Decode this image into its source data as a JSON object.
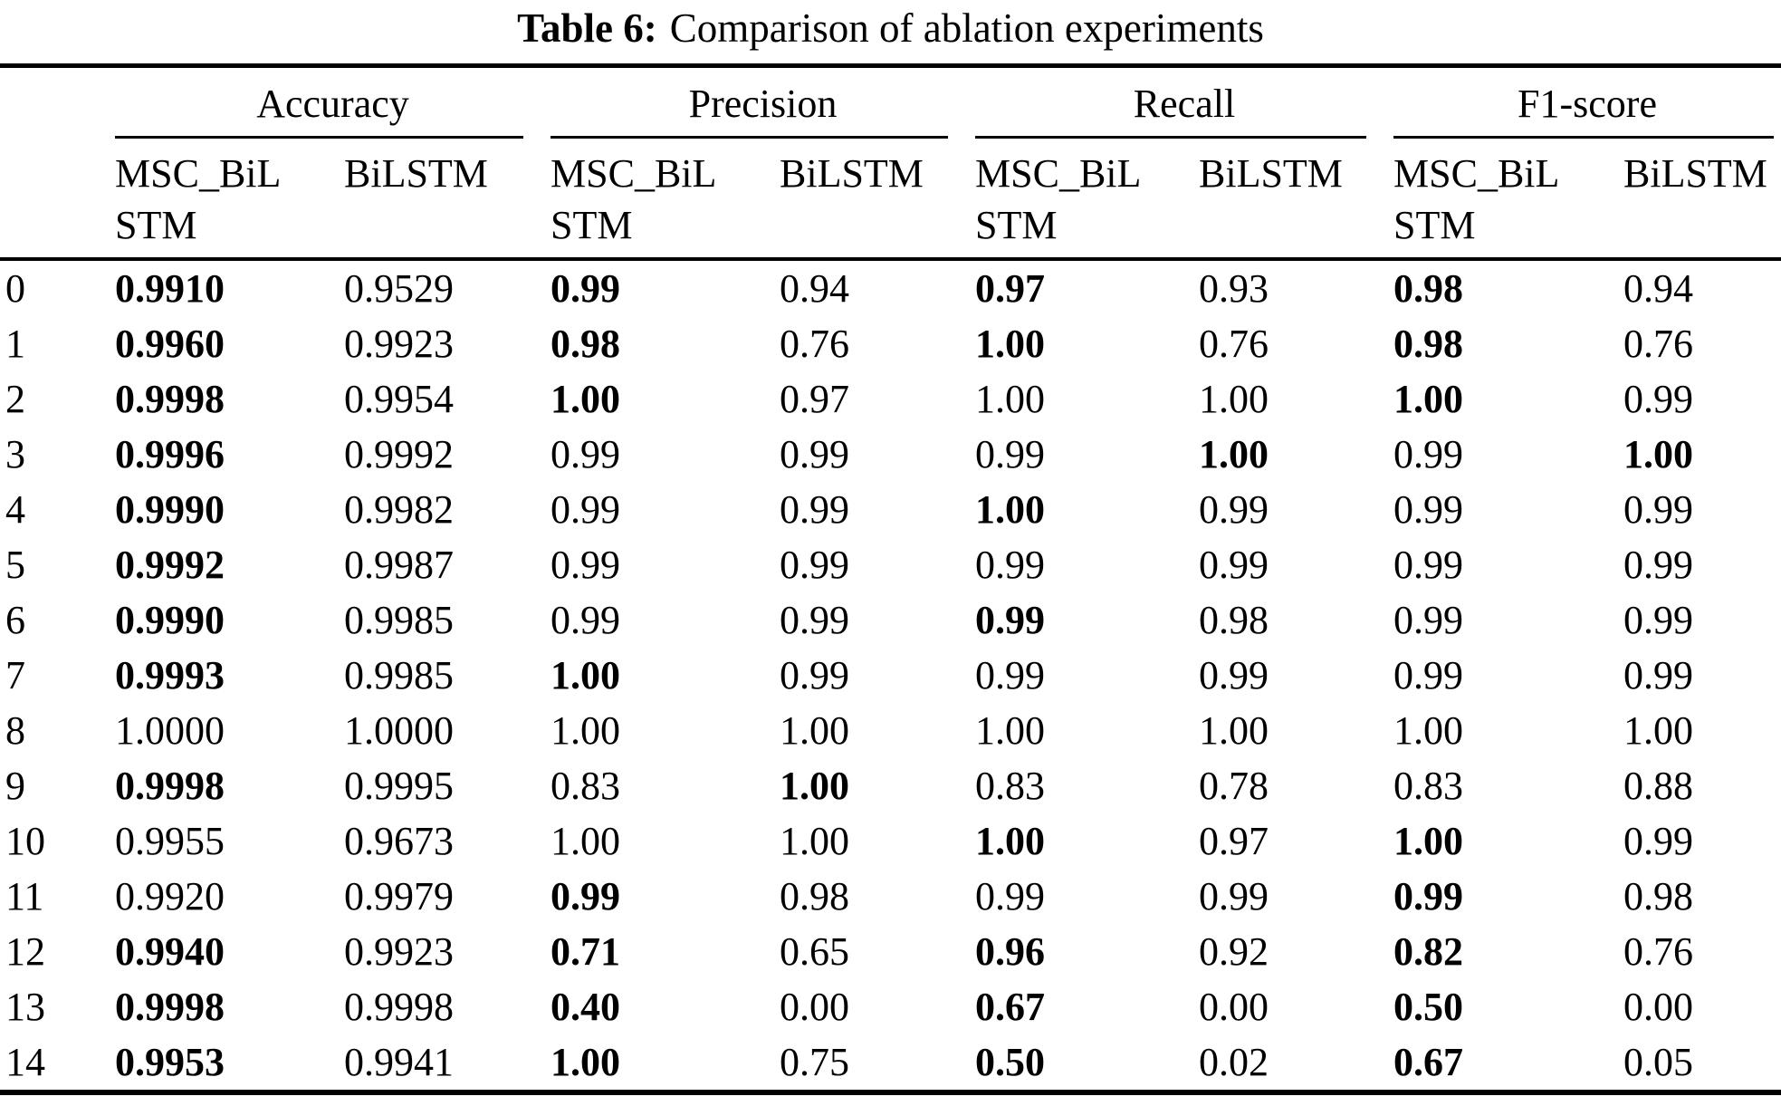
{
  "title": {
    "label": "Table 6:",
    "text": "Comparison of ablation experiments"
  },
  "table": {
    "groups": [
      "Accuracy",
      "Precision",
      "Recall",
      "F1-score"
    ],
    "subheaders": {
      "model_a": "MSC_BiL\nSTM",
      "model_b": "BiLSTM"
    },
    "rule_color": "#000000",
    "rows": [
      {
        "id": "0",
        "cells": [
          {
            "v": "0.9910",
            "b": true
          },
          {
            "v": "0.9529",
            "b": false
          },
          {
            "v": "0.99",
            "b": true
          },
          {
            "v": "0.94",
            "b": false
          },
          {
            "v": "0.97",
            "b": true
          },
          {
            "v": "0.93",
            "b": false
          },
          {
            "v": "0.98",
            "b": true
          },
          {
            "v": "0.94",
            "b": false
          }
        ]
      },
      {
        "id": "1",
        "cells": [
          {
            "v": "0.9960",
            "b": true
          },
          {
            "v": "0.9923",
            "b": false
          },
          {
            "v": "0.98",
            "b": true
          },
          {
            "v": "0.76",
            "b": false
          },
          {
            "v": "1.00",
            "b": true
          },
          {
            "v": "0.76",
            "b": false
          },
          {
            "v": "0.98",
            "b": true
          },
          {
            "v": "0.76",
            "b": false
          }
        ]
      },
      {
        "id": "2",
        "cells": [
          {
            "v": "0.9998",
            "b": true
          },
          {
            "v": "0.9954",
            "b": false
          },
          {
            "v": "1.00",
            "b": true
          },
          {
            "v": "0.97",
            "b": false
          },
          {
            "v": "1.00",
            "b": false
          },
          {
            "v": "1.00",
            "b": false
          },
          {
            "v": "1.00",
            "b": true
          },
          {
            "v": "0.99",
            "b": false
          }
        ]
      },
      {
        "id": "3",
        "cells": [
          {
            "v": "0.9996",
            "b": true
          },
          {
            "v": "0.9992",
            "b": false
          },
          {
            "v": "0.99",
            "b": false
          },
          {
            "v": "0.99",
            "b": false
          },
          {
            "v": "0.99",
            "b": false
          },
          {
            "v": "1.00",
            "b": true
          },
          {
            "v": "0.99",
            "b": false
          },
          {
            "v": "1.00",
            "b": true
          }
        ]
      },
      {
        "id": "4",
        "cells": [
          {
            "v": "0.9990",
            "b": true
          },
          {
            "v": "0.9982",
            "b": false
          },
          {
            "v": "0.99",
            "b": false
          },
          {
            "v": "0.99",
            "b": false
          },
          {
            "v": "1.00",
            "b": true
          },
          {
            "v": "0.99",
            "b": false
          },
          {
            "v": "0.99",
            "b": false
          },
          {
            "v": "0.99",
            "b": false
          }
        ]
      },
      {
        "id": "5",
        "cells": [
          {
            "v": "0.9992",
            "b": true
          },
          {
            "v": "0.9987",
            "b": false
          },
          {
            "v": "0.99",
            "b": false
          },
          {
            "v": "0.99",
            "b": false
          },
          {
            "v": "0.99",
            "b": false
          },
          {
            "v": "0.99",
            "b": false
          },
          {
            "v": "0.99",
            "b": false
          },
          {
            "v": "0.99",
            "b": false
          }
        ]
      },
      {
        "id": "6",
        "cells": [
          {
            "v": "0.9990",
            "b": true
          },
          {
            "v": "0.9985",
            "b": false
          },
          {
            "v": "0.99",
            "b": false
          },
          {
            "v": "0.99",
            "b": false
          },
          {
            "v": "0.99",
            "b": true
          },
          {
            "v": "0.98",
            "b": false
          },
          {
            "v": "0.99",
            "b": false
          },
          {
            "v": "0.99",
            "b": false
          }
        ]
      },
      {
        "id": "7",
        "cells": [
          {
            "v": "0.9993",
            "b": true
          },
          {
            "v": "0.9985",
            "b": false
          },
          {
            "v": "1.00",
            "b": true
          },
          {
            "v": "0.99",
            "b": false
          },
          {
            "v": "0.99",
            "b": false
          },
          {
            "v": "0.99",
            "b": false
          },
          {
            "v": "0.99",
            "b": false
          },
          {
            "v": "0.99",
            "b": false
          }
        ]
      },
      {
        "id": "8",
        "cells": [
          {
            "v": "1.0000",
            "b": false
          },
          {
            "v": "1.0000",
            "b": false
          },
          {
            "v": "1.00",
            "b": false
          },
          {
            "v": "1.00",
            "b": false
          },
          {
            "v": "1.00",
            "b": false
          },
          {
            "v": "1.00",
            "b": false
          },
          {
            "v": "1.00",
            "b": false
          },
          {
            "v": "1.00",
            "b": false
          }
        ]
      },
      {
        "id": "9",
        "cells": [
          {
            "v": "0.9998",
            "b": true
          },
          {
            "v": "0.9995",
            "b": false
          },
          {
            "v": "0.83",
            "b": false
          },
          {
            "v": "1.00",
            "b": true
          },
          {
            "v": "0.83",
            "b": false
          },
          {
            "v": "0.78",
            "b": false
          },
          {
            "v": "0.83",
            "b": false
          },
          {
            "v": "0.88",
            "b": false
          }
        ]
      },
      {
        "id": "10",
        "cells": [
          {
            "v": "0.9955",
            "b": false
          },
          {
            "v": "0.9673",
            "b": false
          },
          {
            "v": "1.00",
            "b": false
          },
          {
            "v": "1.00",
            "b": false
          },
          {
            "v": "1.00",
            "b": true
          },
          {
            "v": "0.97",
            "b": false
          },
          {
            "v": "1.00",
            "b": true
          },
          {
            "v": "0.99",
            "b": false
          }
        ]
      },
      {
        "id": "11",
        "cells": [
          {
            "v": "0.9920",
            "b": false
          },
          {
            "v": "0.9979",
            "b": false
          },
          {
            "v": "0.99",
            "b": true
          },
          {
            "v": "0.98",
            "b": false
          },
          {
            "v": "0.99",
            "b": false
          },
          {
            "v": "0.99",
            "b": false
          },
          {
            "v": "0.99",
            "b": true
          },
          {
            "v": "0.98",
            "b": false
          }
        ]
      },
      {
        "id": "12",
        "cells": [
          {
            "v": "0.9940",
            "b": true
          },
          {
            "v": "0.9923",
            "b": false
          },
          {
            "v": "0.71",
            "b": true
          },
          {
            "v": "0.65",
            "b": false
          },
          {
            "v": "0.96",
            "b": true
          },
          {
            "v": "0.92",
            "b": false
          },
          {
            "v": "0.82",
            "b": true
          },
          {
            "v": "0.76",
            "b": false
          }
        ]
      },
      {
        "id": "13",
        "cells": [
          {
            "v": "0.9998",
            "b": true
          },
          {
            "v": "0.9998",
            "b": false
          },
          {
            "v": "0.40",
            "b": true
          },
          {
            "v": "0.00",
            "b": false
          },
          {
            "v": "0.67",
            "b": true
          },
          {
            "v": "0.00",
            "b": false
          },
          {
            "v": "0.50",
            "b": true
          },
          {
            "v": "0.00",
            "b": false
          }
        ]
      },
      {
        "id": "14",
        "cells": [
          {
            "v": "0.9953",
            "b": true
          },
          {
            "v": "0.9941",
            "b": false
          },
          {
            "v": "1.00",
            "b": true
          },
          {
            "v": "0.75",
            "b": false
          },
          {
            "v": "0.50",
            "b": true
          },
          {
            "v": "0.02",
            "b": false
          },
          {
            "v": "0.67",
            "b": true
          },
          {
            "v": "0.05",
            "b": false
          }
        ]
      }
    ]
  }
}
